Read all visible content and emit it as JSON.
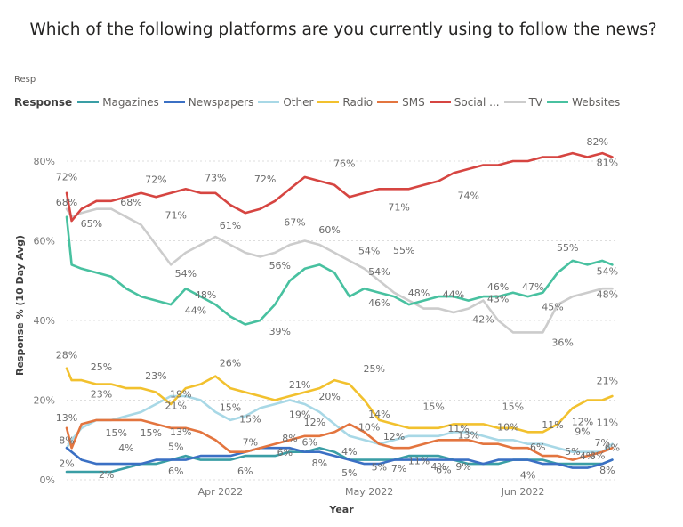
{
  "title": "Which of the following platforms are you currently using to follow the news?",
  "legend_truncated_label": "Resp",
  "chart_data": {
    "type": "line",
    "title": "Which of the following platforms are you currently using to follow the news?",
    "xlabel": "Year",
    "ylabel": "Response % (10 Day Avg)",
    "ylim": [
      0,
      85
    ],
    "yticks": [
      0,
      20,
      40,
      60,
      80
    ],
    "ytick_labels": [
      "0%",
      "20%",
      "40%",
      "60%",
      "80%"
    ],
    "xlim": [
      "2022-03-01",
      "2022-06-20"
    ],
    "xticks": [
      {
        "date": "2022-04-01",
        "label": "Apr 2022"
      },
      {
        "date": "2022-05-01",
        "label": "May 2022"
      },
      {
        "date": "2022-06-01",
        "label": "Jun 2022"
      }
    ],
    "grid": true,
    "legend": {
      "title": "Response",
      "position": "top-left"
    },
    "x_day_offsets": [
      0,
      1,
      3,
      6,
      9,
      12,
      15,
      18,
      21,
      24,
      27,
      30,
      33,
      36,
      39,
      42,
      45,
      48,
      51,
      54,
      57,
      60,
      63,
      66,
      69,
      72,
      75,
      78,
      81,
      84,
      87,
      90,
      93,
      96,
      99,
      102,
      105,
      108,
      110
    ],
    "series": [
      {
        "name": "Magazines",
        "color": "#3a9ea5",
        "values": [
          2,
          2,
          2,
          2,
          2,
          3,
          4,
          4,
          5,
          6,
          5,
          5,
          5,
          6,
          6,
          6,
          7,
          7,
          8,
          7,
          5,
          5,
          5,
          5,
          6,
          6,
          6,
          5,
          4,
          4,
          4,
          5,
          5,
          5,
          4,
          4,
          4,
          4,
          5
        ]
      },
      {
        "name": "Newspapers",
        "color": "#3b70c4",
        "values": [
          8,
          7,
          5,
          4,
          4,
          4,
          4,
          5,
          5,
          5,
          6,
          6,
          6,
          7,
          8,
          8,
          8,
          7,
          7,
          6,
          5,
          4,
          4,
          5,
          5,
          5,
          5,
          5,
          5,
          4,
          5,
          5,
          5,
          4,
          4,
          3,
          3,
          4,
          5
        ]
      },
      {
        "name": "Other",
        "color": "#a8d8e6",
        "values": [
          8,
          10,
          13,
          15,
          15,
          16,
          17,
          19,
          21,
          21,
          20,
          17,
          15,
          16,
          18,
          19,
          20,
          19,
          17,
          14,
          11,
          10,
          9,
          10,
          11,
          11,
          11,
          12,
          12,
          11,
          10,
          10,
          9,
          9,
          8,
          7,
          7,
          7,
          9
        ]
      },
      {
        "name": "Radio",
        "color": "#f2c12e",
        "values": [
          28,
          25,
          25,
          24,
          24,
          23,
          23,
          22,
          19,
          23,
          24,
          26,
          23,
          22,
          21,
          20,
          21,
          22,
          23,
          25,
          24,
          20,
          15,
          14,
          13,
          13,
          13,
          14,
          14,
          14,
          13,
          13,
          12,
          12,
          14,
          18,
          20,
          20,
          21
        ]
      },
      {
        "name": "SMS",
        "color": "#e3753f",
        "values": [
          13,
          8,
          14,
          15,
          15,
          15,
          15,
          14,
          13,
          13,
          12,
          10,
          7,
          7,
          8,
          9,
          10,
          11,
          11,
          12,
          14,
          12,
          9,
          8,
          8,
          9,
          10,
          10,
          10,
          9,
          9,
          8,
          8,
          6,
          6,
          5,
          6,
          7,
          8
        ]
      },
      {
        "name": "Social ...",
        "color": "#d64541",
        "values": [
          72,
          65,
          68,
          70,
          70,
          71,
          72,
          71,
          72,
          73,
          72,
          72,
          69,
          67,
          68,
          70,
          73,
          76,
          75,
          74,
          71,
          72,
          73,
          73,
          73,
          74,
          75,
          77,
          78,
          79,
          79,
          80,
          80,
          81,
          81,
          82,
          81,
          82,
          81
        ]
      },
      {
        "name": "TV",
        "color": "#cccccc",
        "values": [
          68,
          66,
          67,
          68,
          68,
          66,
          64,
          59,
          54,
          57,
          59,
          61,
          59,
          57,
          56,
          57,
          59,
          60,
          59,
          57,
          55,
          53,
          50,
          47,
          45,
          43,
          43,
          42,
          43,
          45,
          40,
          37,
          37,
          37,
          44,
          46,
          47,
          48,
          48
        ]
      },
      {
        "name": "Websites",
        "color": "#48c1a0",
        "values": [
          66,
          54,
          53,
          52,
          51,
          48,
          46,
          45,
          44,
          48,
          46,
          44,
          41,
          39,
          40,
          44,
          50,
          53,
          54,
          52,
          46,
          48,
          47,
          46,
          44,
          45,
          46,
          46,
          45,
          46,
          46,
          47,
          46,
          47,
          52,
          55,
          54,
          55,
          54
        ]
      }
    ],
    "data_labels": [
      {
        "series": "Social ...",
        "text": "72%",
        "day": 0,
        "value": 75.2
      },
      {
        "series": "Social ...",
        "text": "72%",
        "day": 18,
        "value": 74.5
      },
      {
        "series": "Social ...",
        "text": "71%",
        "day": 22,
        "value": 65.6
      },
      {
        "series": "Social ...",
        "text": "73%",
        "day": 30,
        "value": 75.0
      },
      {
        "series": "Social ...",
        "text": "72%",
        "day": 40,
        "value": 74.6
      },
      {
        "series": "Social ...",
        "text": "67%",
        "day": 46,
        "value": 63.8
      },
      {
        "series": "Social ...",
        "text": "76%",
        "day": 56,
        "value": 78.6
      },
      {
        "series": "Social ...",
        "text": "71%",
        "day": 67,
        "value": 67.6
      },
      {
        "series": "Social ...",
        "text": "74%",
        "day": 81,
        "value": 70.5
      },
      {
        "series": "Social ...",
        "text": "82%",
        "day": 107,
        "value": 84.0
      },
      {
        "series": "Social ...",
        "text": "81%",
        "day": 109,
        "value": 78.8
      },
      {
        "series": "TV",
        "text": "68%",
        "day": 0,
        "value": 68.8
      },
      {
        "series": "TV",
        "text": "65%",
        "day": 5,
        "value": 63.5
      },
      {
        "series": "TV",
        "text": "68%",
        "day": 13,
        "value": 68.8
      },
      {
        "series": "TV",
        "text": "54%",
        "day": 24,
        "value": 51.0
      },
      {
        "series": "TV",
        "text": "61%",
        "day": 33,
        "value": 63.0
      },
      {
        "series": "TV",
        "text": "56%",
        "day": 43,
        "value": 53.0
      },
      {
        "series": "TV",
        "text": "60%",
        "day": 53,
        "value": 61.9
      },
      {
        "series": "TV",
        "text": "55%",
        "day": 68,
        "value": 56.8
      },
      {
        "series": "TV",
        "text": "42%",
        "day": 84,
        "value": 39.4
      },
      {
        "series": "TV",
        "text": "45%",
        "day": 98,
        "value": 42.6
      },
      {
        "series": "TV",
        "text": "36%",
        "day": 100,
        "value": 33.6
      },
      {
        "series": "TV",
        "text": "48%",
        "day": 109,
        "value": 45.7
      },
      {
        "series": "Websites",
        "text": "44%",
        "day": 26,
        "value": 41.7
      },
      {
        "series": "Websites",
        "text": "48%",
        "day": 28,
        "value": 45.6
      },
      {
        "series": "Websites",
        "text": "39%",
        "day": 43,
        "value": 36.4
      },
      {
        "series": "Websites",
        "text": "54%",
        "day": 61,
        "value": 56.6
      },
      {
        "series": "Websites",
        "text": "54%",
        "day": 63,
        "value": 51.4
      },
      {
        "series": "Websites",
        "text": "46%",
        "day": 63,
        "value": 43.6
      },
      {
        "series": "Websites",
        "text": "48%",
        "day": 71,
        "value": 46.0
      },
      {
        "series": "Websites",
        "text": "44%",
        "day": 78,
        "value": 45.7
      },
      {
        "series": "Websites",
        "text": "46%",
        "day": 87,
        "value": 47.6
      },
      {
        "series": "Websites",
        "text": "43%",
        "day": 87,
        "value": 44.6
      },
      {
        "series": "Websites",
        "text": "47%",
        "day": 94,
        "value": 47.6
      },
      {
        "series": "Websites",
        "text": "55%",
        "day": 101,
        "value": 57.4
      },
      {
        "series": "Websites",
        "text": "54%",
        "day": 109,
        "value": 51.5
      },
      {
        "series": "Radio",
        "text": "28%",
        "day": 0,
        "value": 30.5
      },
      {
        "series": "Radio",
        "text": "25%",
        "day": 7,
        "value": 27.5
      },
      {
        "series": "Radio",
        "text": "23%",
        "day": 18,
        "value": 25.3
      },
      {
        "series": "Radio",
        "text": "26%",
        "day": 33,
        "value": 28.5
      },
      {
        "series": "Radio",
        "text": "21%",
        "day": 47,
        "value": 23.0
      },
      {
        "series": "Radio",
        "text": "25%",
        "day": 62,
        "value": 27.0
      },
      {
        "series": "Radio",
        "text": "15%",
        "day": 74,
        "value": 17.5
      },
      {
        "series": "Radio",
        "text": "15%",
        "day": 90,
        "value": 17.5
      },
      {
        "series": "Radio",
        "text": "12%",
        "day": 104,
        "value": 13.7
      },
      {
        "series": "Radio",
        "text": "21%",
        "day": 109,
        "value": 24.0
      },
      {
        "series": "Other",
        "text": "23%",
        "day": 7,
        "value": 20.7
      },
      {
        "series": "Other",
        "text": "15%",
        "day": 10,
        "value": 11.0
      },
      {
        "series": "Other",
        "text": "15%",
        "day": 17,
        "value": 11.0
      },
      {
        "series": "Other",
        "text": "21%",
        "day": 22,
        "value": 17.8
      },
      {
        "series": "Other",
        "text": "19%",
        "day": 23,
        "value": 20.7
      },
      {
        "series": "Other",
        "text": "15%",
        "day": 33,
        "value": 17.3
      },
      {
        "series": "Other",
        "text": "15%",
        "day": 37,
        "value": 14.4
      },
      {
        "series": "Other",
        "text": "19%",
        "day": 47,
        "value": 15.5
      },
      {
        "series": "Other",
        "text": "20%",
        "day": 53,
        "value": 20.1
      },
      {
        "series": "Other",
        "text": "10%",
        "day": 61,
        "value": 12.4
      },
      {
        "series": "Other",
        "text": "11%",
        "day": 79,
        "value": 12.1
      },
      {
        "series": "Other",
        "text": "10%",
        "day": 89,
        "value": 12.4
      },
      {
        "series": "Other",
        "text": "11%",
        "day": 98,
        "value": 13.0
      },
      {
        "series": "Other",
        "text": "9%",
        "day": 104,
        "value": 11.3
      },
      {
        "series": "Other",
        "text": "7%",
        "day": 108,
        "value": 8.5
      },
      {
        "series": "Other",
        "text": "11%",
        "day": 109,
        "value": 13.5
      },
      {
        "series": "SMS",
        "text": "13%",
        "day": 0,
        "value": 14.8
      },
      {
        "series": "SMS",
        "text": "13%",
        "day": 23,
        "value": 11.2
      },
      {
        "series": "SMS",
        "text": "7%",
        "day": 37,
        "value": 8.6
      },
      {
        "series": "SMS",
        "text": "8%",
        "day": 45,
        "value": 9.6
      },
      {
        "series": "SMS",
        "text": "12%",
        "day": 50,
        "value": 13.6
      },
      {
        "series": "SMS",
        "text": "14%",
        "day": 63,
        "value": 15.6
      },
      {
        "series": "SMS",
        "text": "12%",
        "day": 66,
        "value": 10.1
      },
      {
        "series": "SMS",
        "text": "13%",
        "day": 81,
        "value": 10.4
      },
      {
        "series": "SMS",
        "text": "6%",
        "day": 95,
        "value": 7.4
      },
      {
        "series": "SMS",
        "text": "5%",
        "day": 102,
        "value": 6.3
      },
      {
        "series": "SMS",
        "text": "4%",
        "day": 105,
        "value": 5.1
      },
      {
        "series": "SMS",
        "text": "3%",
        "day": 107,
        "value": 5.3
      },
      {
        "series": "SMS",
        "text": "6%",
        "day": 110,
        "value": 7.3
      },
      {
        "series": "Newspapers",
        "text": "8%",
        "day": 0,
        "value": 9.0
      },
      {
        "series": "Newspapers",
        "text": "2%",
        "day": 0,
        "value": 3.2
      },
      {
        "series": "Newspapers",
        "text": "4%",
        "day": 12,
        "value": 7.2
      },
      {
        "series": "Newspapers",
        "text": "5%",
        "day": 22,
        "value": 7.5
      },
      {
        "series": "Newspapers",
        "text": "6%",
        "day": 44,
        "value": 6.0
      },
      {
        "series": "Newspapers",
        "text": "6%",
        "day": 49,
        "value": 8.6
      },
      {
        "series": "Newspapers",
        "text": "4%",
        "day": 57,
        "value": 6.3
      },
      {
        "series": "Newspapers",
        "text": "5%",
        "day": 63,
        "value": 2.4
      },
      {
        "series": "Newspapers",
        "text": "11%",
        "day": 71,
        "value": 3.9
      },
      {
        "series": "Newspapers",
        "text": "4%",
        "day": 75,
        "value": 2.5
      },
      {
        "series": "Newspapers",
        "text": "9%",
        "day": 80,
        "value": 2.5
      },
      {
        "series": "Newspapers",
        "text": "8%",
        "day": 109,
        "value": 1.6
      },
      {
        "series": "Magazines",
        "text": "2%",
        "day": 8,
        "value": 0.4
      },
      {
        "series": "Magazines",
        "text": "6%",
        "day": 22,
        "value": 1.3
      },
      {
        "series": "Magazines",
        "text": "6%",
        "day": 36,
        "value": 1.3
      },
      {
        "series": "Magazines",
        "text": "8%",
        "day": 51,
        "value": 3.3
      },
      {
        "series": "Magazines",
        "text": "5%",
        "day": 57,
        "value": 0.9
      },
      {
        "series": "Magazines",
        "text": "7%",
        "day": 67,
        "value": 2.0
      },
      {
        "series": "Magazines",
        "text": "6%",
        "day": 76,
        "value": 1.7
      },
      {
        "series": "Magazines",
        "text": "4%",
        "day": 93,
        "value": 0.3
      }
    ]
  }
}
